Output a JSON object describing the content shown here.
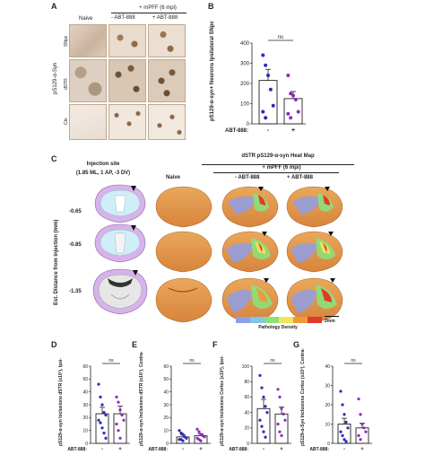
{
  "panelA": {
    "letter": "A",
    "header_naive": "Naive",
    "header_group": "+ mPFF (6 mpi)",
    "header_veh": "- ABT-888",
    "header_abt": "+ ABT-888",
    "row_snpc": "SNpc",
    "row_dstr": "dSTR",
    "row_ctx": "Ctx",
    "side_label": "pS129-α-Syn"
  },
  "panelB": {
    "letter": "B",
    "ylabel": "pS129-α-syn+ Neurons Ipsilateral SNpc",
    "sig": "ns",
    "xrow_label": "ABT-888:",
    "xticks": [
      "-",
      "+"
    ],
    "yticks": [
      "0",
      "100",
      "200",
      "300",
      "400"
    ]
  },
  "panelC": {
    "letter": "C",
    "left_title": "Injection site",
    "left_sub": "(1.85 ML, 1 AP, -3 DV)",
    "right_title": "dSTR pS129-α-syn Heat Map",
    "group_label": "+ mPFF (6 mpi)",
    "col_naive": "Naive",
    "col_veh": "- ABT-888",
    "col_abt": "+ ABT-888",
    "distance_axis": "Est. Distance from injection (mm)",
    "distances": [
      "-0.65",
      "-0.85",
      "-1.35"
    ],
    "scale_bar": "2mm",
    "legend_label": "Pathology Density",
    "legend_colors": [
      "#8f9fe6",
      "#7fc8e8",
      "#8be07a",
      "#f2e35a",
      "#f0993a",
      "#e23a2a"
    ]
  },
  "panelD": {
    "letter": "D",
    "ylabel": "pS129-α-syn Inclusions dSTR (x10³), Ipsi-",
    "sig": "ns",
    "xrow_label": "ABT-888:",
    "xticks": [
      "-",
      "+"
    ],
    "yticks": [
      "0",
      "10",
      "20",
      "30",
      "40",
      "50",
      "60"
    ]
  },
  "panelE": {
    "letter": "E",
    "ylabel": "pS129-α-syn Inclusions dSTR (x10³), Contra-",
    "sig": "ns",
    "xrow_label": "ABT-888:",
    "xticks": [
      "-",
      "+"
    ],
    "yticks": [
      "0",
      "10",
      "20",
      "30",
      "40",
      "50",
      "60"
    ]
  },
  "panelF": {
    "letter": "F",
    "ylabel": "pS129-α-syn Inclusions Cortex (x10³), Ipsi-",
    "sig": "ns",
    "xrow_label": "ABT-888:",
    "xticks": [
      "-",
      "+"
    ],
    "yticks": [
      "0",
      "20",
      "40",
      "60",
      "80",
      "100"
    ]
  },
  "panelG": {
    "letter": "G",
    "ylabel": "pS129-α-Syn Inclusions Cortex (x10³), Contra-",
    "sig": "ns",
    "xrow_label": "ABT-888:",
    "xticks": [
      "-",
      "+"
    ],
    "yticks": [
      "0",
      "10",
      "20",
      "30",
      "40"
    ]
  },
  "chart_data": [
    {
      "panel": "B",
      "type": "bar",
      "categories": [
        "-",
        "+"
      ],
      "values": [
        215,
        125
      ],
      "errors": [
        55,
        35
      ],
      "ylim": [
        0,
        400
      ],
      "points": [
        [
          340,
          290,
          240,
          170,
          90,
          60,
          30
        ],
        [
          240,
          150,
          140,
          120,
          60,
          50,
          30
        ]
      ],
      "colors": [
        "#2b2bb8",
        "#8e2bb8"
      ]
    },
    {
      "panel": "D",
      "type": "bar",
      "categories": [
        "-",
        "+"
      ],
      "values": [
        23,
        23
      ],
      "errors": [
        5,
        6
      ],
      "ylim": [
        0,
        60
      ],
      "points": [
        [
          46,
          36,
          30,
          24,
          22,
          18,
          16,
          12,
          8,
          4
        ],
        [
          36,
          32,
          26,
          22,
          18,
          15,
          10,
          4
        ]
      ],
      "colors": [
        "#2b2bb8",
        "#8e2bb8"
      ]
    },
    {
      "panel": "E",
      "type": "bar",
      "categories": [
        "-",
        "+"
      ],
      "values": [
        5,
        6
      ],
      "errors": [
        1.5,
        1.5
      ],
      "ylim": [
        0,
        60
      ],
      "points": [
        [
          10,
          8,
          7,
          5,
          4,
          3,
          3,
          2
        ],
        [
          11,
          9,
          7,
          6,
          5,
          4,
          3,
          2
        ]
      ],
      "colors": [
        "#2b2bb8",
        "#8e2bb8"
      ]
    },
    {
      "panel": "F",
      "type": "bar",
      "categories": [
        "-",
        "+"
      ],
      "values": [
        45,
        38
      ],
      "errors": [
        12,
        9
      ],
      "ylim": [
        0,
        100
      ],
      "points": [
        [
          88,
          72,
          60,
          48,
          40,
          30,
          22,
          15,
          8
        ],
        [
          70,
          60,
          45,
          38,
          30,
          25,
          15,
          10
        ]
      ],
      "colors": [
        "#2b2bb8",
        "#8e2bb8"
      ]
    },
    {
      "panel": "G",
      "type": "bar",
      "categories": [
        "-",
        "+"
      ],
      "values": [
        10,
        8
      ],
      "errors": [
        3,
        2.5
      ],
      "ylim": [
        0,
        40
      ],
      "points": [
        [
          27,
          20,
          15,
          11,
          8,
          6,
          4,
          2,
          1
        ],
        [
          23,
          15,
          10,
          8,
          6,
          4,
          2
        ]
      ],
      "colors": [
        "#2b2bb8",
        "#8e2bb8"
      ]
    }
  ]
}
